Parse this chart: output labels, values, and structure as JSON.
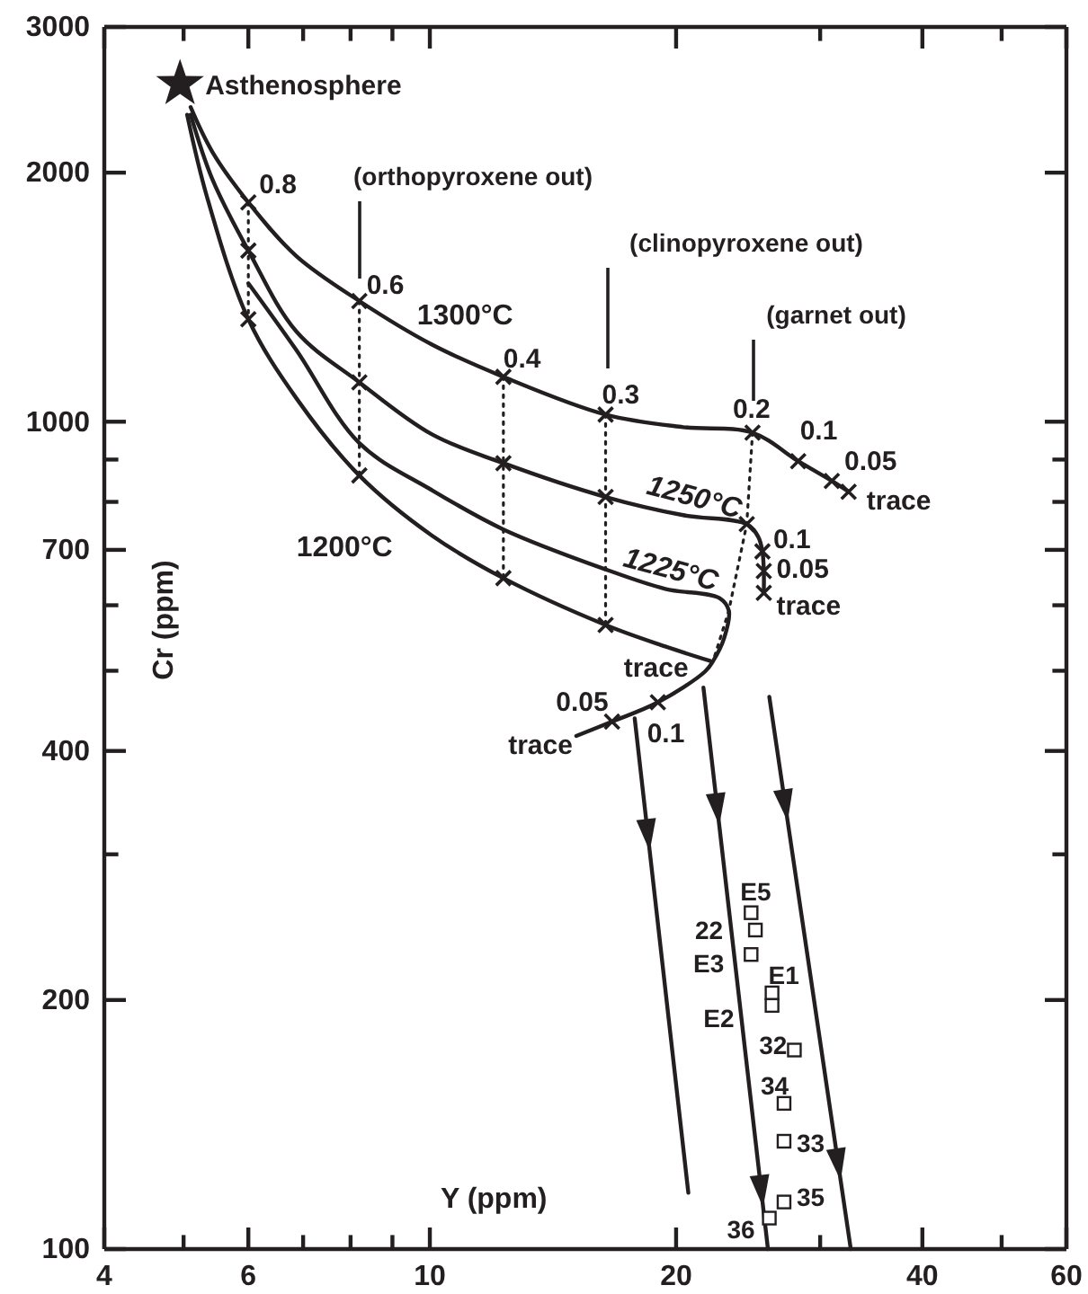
{
  "chart_data": {
    "type": "line",
    "xlabel": "Y (ppm)",
    "ylabel": "Cr (ppm)",
    "log": "xy",
    "grid": false,
    "marker": "none",
    "line_style": "solid",
    "xlim": [
      4,
      60
    ],
    "ylim": [
      100,
      3000
    ],
    "xticks": [
      4,
      {
        "value": 5,
        "label": null
      },
      6,
      {
        "value": 7,
        "label": null
      },
      {
        "value": 8,
        "label": null
      },
      {
        "value": 9,
        "label": null
      },
      10,
      20,
      {
        "value": 30,
        "label": null
      },
      40,
      {
        "value": 50,
        "label": null
      },
      60
    ],
    "yticks": [
      100,
      200,
      {
        "value": 300,
        "label": null
      },
      400,
      {
        "value": 500,
        "label": null
      },
      {
        "value": 600,
        "label": null
      },
      700,
      {
        "value": 800,
        "label": null
      },
      {
        "value": 900,
        "label": null
      },
      1000,
      2000,
      3000
    ],
    "series": [
      {
        "name": "1300°C",
        "color": "#231f20",
        "x": [
          5.1,
          5.42,
          6.0,
          6.87,
          8.2,
          10.05,
          12.3,
          16.4,
          20.4,
          24.8,
          28.2,
          31.0,
          32.5
        ],
        "values": [
          2400,
          2120,
          1841,
          1585,
          1399,
          1240,
          1133,
          1020,
          985,
          970,
          896,
          848,
          823
        ]
      },
      {
        "name": "1250°C",
        "color": "#231f20",
        "x": [
          5.1,
          5.42,
          6.0,
          6.87,
          8.2,
          10.05,
          12.3,
          16.4,
          20.4,
          24.4,
          25.2,
          25.5,
          25.6,
          25.6
        ],
        "values": [
          2350,
          1965,
          1610,
          1285,
          1116,
          966,
          891,
          811,
          771,
          752,
          726,
          697,
          660,
          621
        ]
      },
      {
        "name": "1225°C",
        "color": "#231f20",
        "x": [
          6.0,
          6.87,
          8.2,
          10.05,
          12.3,
          16.4,
          19.4,
          22.6,
          23.2,
          22.9,
          22.2,
          21.7,
          19.0,
          16.7,
          15.1
        ],
        "values": [
          1470,
          1220,
          942,
          827,
          741,
          663,
          628,
          612,
          591,
          548,
          514,
          499,
          458,
          434,
          417
        ]
      },
      {
        "name": "1200°C",
        "color": "#231f20",
        "x": [
          5.05,
          5.34,
          6.0,
          6.87,
          8.2,
          10.05,
          12.3,
          16.4,
          19.4,
          22.0
        ],
        "values": [
          2350,
          1870,
          1330,
          1067,
          861,
          729,
          647,
          568,
          535,
          514
        ]
      },
      {
        "color": "#231f20",
        "line_style": "dotted",
        "x": [
          6.0,
          6.0
        ],
        "values": [
          1841,
          1330
        ]
      },
      {
        "color": "#231f20",
        "line_style": "dotted",
        "x": [
          8.2,
          8.2
        ],
        "values": [
          1399,
          861
        ]
      },
      {
        "color": "#231f20",
        "line_style": "dotted",
        "x": [
          12.3,
          12.3
        ],
        "values": [
          1133,
          647
        ]
      },
      {
        "color": "#231f20",
        "line_style": "dotted",
        "x": [
          16.4,
          16.4
        ],
        "values": [
          1020,
          568
        ]
      },
      {
        "color": "#231f20",
        "line_style": "dotted",
        "x": [
          24.8,
          24.4,
          23.2,
          22.2
        ],
        "values": [
          970,
          752,
          591,
          514
        ]
      },
      {
        "color": "#231f20",
        "x": [
          17.8,
          20.7
        ],
        "values": [
          438,
          117
        ]
      },
      {
        "color": "#231f20",
        "x": [
          21.6,
          25.9
        ],
        "values": [
          477,
          100
        ]
      },
      {
        "color": "#231f20",
        "x": [
          26.0,
          32.7
        ],
        "values": [
          465,
          100
        ]
      },
      {
        "type": "scatter",
        "marker": "cross",
        "color": "#231f20",
        "x": [
          6.0,
          8.2,
          12.3,
          16.4,
          24.8,
          28.2,
          31.0,
          32.5,
          6.0,
          8.2,
          12.3,
          16.4,
          24.4,
          25.5,
          25.6,
          25.6,
          19.0,
          16.7,
          6.0,
          8.2,
          12.3,
          16.4
        ],
        "values": [
          1841,
          1399,
          1133,
          1020,
          970,
          896,
          848,
          823,
          1610,
          1116,
          891,
          811,
          752,
          697,
          660,
          621,
          458,
          434,
          1330,
          861,
          647,
          568
        ]
      },
      {
        "type": "scatter",
        "marker": "star",
        "color": "#231f20",
        "x": [
          4.95
        ],
        "values": [
          2560
        ]
      },
      {
        "type": "scatter",
        "marker": "square",
        "color": "#231f20",
        "x": [
          24.7,
          25.0,
          24.7,
          26.2,
          26.2,
          27.9,
          27.1,
          27.1,
          27.1,
          26.0
        ],
        "values": [
          255,
          243,
          227,
          204,
          197,
          174,
          150,
          135,
          114,
          109
        ]
      }
    ],
    "annotations": [
      {
        "text": "Asthenosphere",
        "x": 4.95,
        "y": 2560
      },
      "(orthopyroxene out)",
      "(clinopyroxene out)",
      "(garnet out)",
      {
        "text": "0.8",
        "x": 6.0,
        "y": 1841
      },
      {
        "text": "0.6",
        "x": 8.2,
        "y": 1399
      },
      {
        "text": "0.4",
        "x": 12.3,
        "y": 1133
      },
      {
        "text": "0.3",
        "x": 16.4,
        "y": 1020
      },
      {
        "text": "0.2",
        "x": 24.8,
        "y": 970
      },
      {
        "text": "0.1",
        "x": 28.2,
        "y": 896
      },
      {
        "text": "0.05",
        "x": 31.0,
        "y": 848
      },
      {
        "text": "trace",
        "x": 32.5,
        "y": 823
      },
      {
        "text": "0.1",
        "x": 25.5,
        "y": 697
      },
      {
        "text": "0.05",
        "x": 25.6,
        "y": 660
      },
      {
        "text": "trace",
        "x": 25.6,
        "y": 621
      },
      {
        "text": "trace",
        "x": 22.0,
        "y": 514
      },
      {
        "text": "0.1",
        "x": 19.0,
        "y": 458
      },
      {
        "text": "0.05",
        "x": 16.7,
        "y": 434
      },
      {
        "text": "trace",
        "x": 15.1,
        "y": 417
      },
      {
        "text": "E5",
        "x": 24.7,
        "y": 255
      },
      {
        "text": "22",
        "x": 25.0,
        "y": 243
      },
      {
        "text": "E3",
        "x": 24.7,
        "y": 227
      },
      {
        "text": "E1",
        "x": 26.2,
        "y": 204
      },
      {
        "text": "E2",
        "x": 26.2,
        "y": 197
      },
      {
        "text": "32",
        "x": 27.9,
        "y": 174
      },
      {
        "text": "34",
        "x": 27.1,
        "y": 150
      },
      {
        "text": "33",
        "x": 27.1,
        "y": 135
      },
      {
        "text": "35",
        "x": 27.1,
        "y": 114
      },
      {
        "text": "36",
        "x": 26.0,
        "y": 109
      }
    ]
  }
}
